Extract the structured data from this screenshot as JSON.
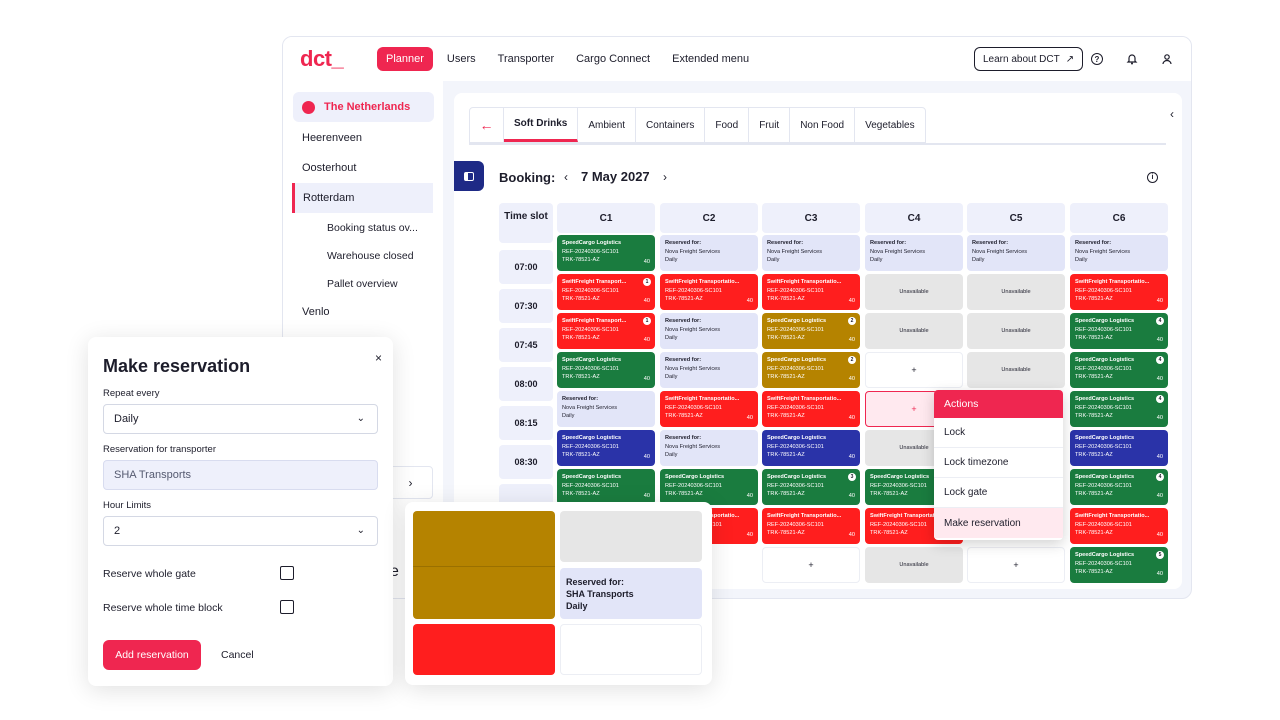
{
  "app": {
    "logo": "dct_",
    "nav": [
      "Planner",
      "Users",
      "Transporter",
      "Cargo Connect",
      "Extended menu"
    ],
    "learn_button": "Learn about DCT",
    "learn_icon": "arrow-up-right-icon"
  },
  "sidebar": {
    "country": "The Netherlands",
    "locations": [
      "Heerenveen",
      "Oosterhout",
      "Rotterdam",
      "Venlo"
    ],
    "sub_items": [
      "Booking status ov...",
      "Warehouse closed",
      "Pallet overview"
    ]
  },
  "tabs": [
    "Soft Drinks",
    "Ambient",
    "Containers",
    "Food",
    "Fruit",
    "Non Food",
    "Vegetables"
  ],
  "booking": {
    "title": "Booking:",
    "date": "7 May 2027"
  },
  "grid": {
    "time_header": "Time slot",
    "columns": [
      "C1",
      "C2",
      "C3",
      "C4",
      "C5",
      "C6"
    ],
    "times": [
      "07:00",
      "07:30",
      "07:45",
      "08:00",
      "08:15",
      "08:30"
    ],
    "ref": "REF-20240306-SC101",
    "truck": "TRK-78521-AZ",
    "qty": "40",
    "reserved_label": "Reserved for:",
    "reserved_name": "Nova Freight Services",
    "reserved_freq": "Daily",
    "unavailable": "Unavailable",
    "carriers": {
      "speed": "SpeedCargo Logistics",
      "swift_short": "SwiftFreight Transport...",
      "swift_long": "SwiftFreight Transportatio..."
    },
    "badges": [
      "1",
      "2",
      "3",
      "4",
      "5"
    ],
    "plus": "+"
  },
  "actions": {
    "title": "Actions",
    "items": [
      "Lock",
      "Lock timezone",
      "Lock gate",
      "Make reservation"
    ]
  },
  "modal": {
    "title": "Make reservation",
    "repeat_label": "Repeat every",
    "repeat_value": "Daily",
    "transporter_label": "Reservation for transporter",
    "transporter_value": "SHA Transports",
    "hour_label": "Hour Limits",
    "hour_value": "2",
    "whole_gate": "Reserve whole gate",
    "whole_block": "Reserve whole time block",
    "submit": "Add reservation",
    "cancel": "Cancel"
  },
  "zoom": {
    "reserved_label": "Reserved for:",
    "reserved_name": "SHA Transports",
    "reserved_freq": "Daily"
  },
  "colors": {
    "brand": "#ef2650",
    "green": "#1a7c3f",
    "red": "#ff1e1e",
    "blue": "#2a33a8",
    "gold": "#b58300"
  }
}
